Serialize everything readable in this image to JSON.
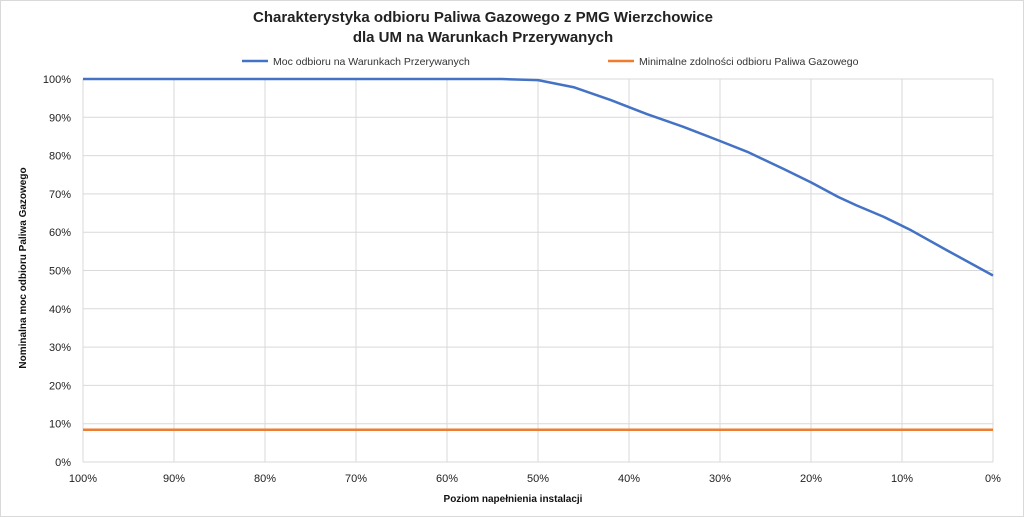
{
  "chart_data": {
    "type": "line",
    "title": [
      "Charakterystyka odbioru Paliwa Gazowego z PMG Wierzchowice",
      "dla UM na Warunkach Przerywanych"
    ],
    "xlabel": "Poziom napełnienia instalacji",
    "ylabel": "Nominalna moc odbioru Paliwa Gazowego",
    "x_ticks": [
      "100%",
      "90%",
      "80%",
      "70%",
      "60%",
      "50%",
      "40%",
      "30%",
      "20%",
      "10%",
      "0%"
    ],
    "y_ticks": [
      "0%",
      "10%",
      "20%",
      "30%",
      "40%",
      "50%",
      "60%",
      "70%",
      "80%",
      "90%",
      "100%"
    ],
    "xlim": [
      100,
      0
    ],
    "ylim": [
      0,
      100
    ],
    "grid": true,
    "legend_position": "top",
    "series": [
      {
        "name": "Moc odbioru na Warunkach Przerywanych",
        "color": "#4472C4",
        "x": [
          100,
          90,
          80,
          70,
          60,
          54,
          50,
          46,
          42,
          38,
          34,
          30,
          27,
          23,
          20,
          17,
          15,
          12,
          9,
          5,
          0
        ],
        "y": [
          100,
          100,
          100,
          100,
          100,
          100,
          99.7,
          97.8,
          94.5,
          90.8,
          87.5,
          83.8,
          81,
          76.5,
          73,
          69.2,
          67,
          64,
          60.5,
          55.2,
          48.7
        ]
      },
      {
        "name": "Minimalne zdolności odbioru Paliwa Gazowego",
        "color": "#ED7D31",
        "x": [
          100,
          0
        ],
        "y": [
          8.4,
          8.4
        ]
      }
    ]
  }
}
